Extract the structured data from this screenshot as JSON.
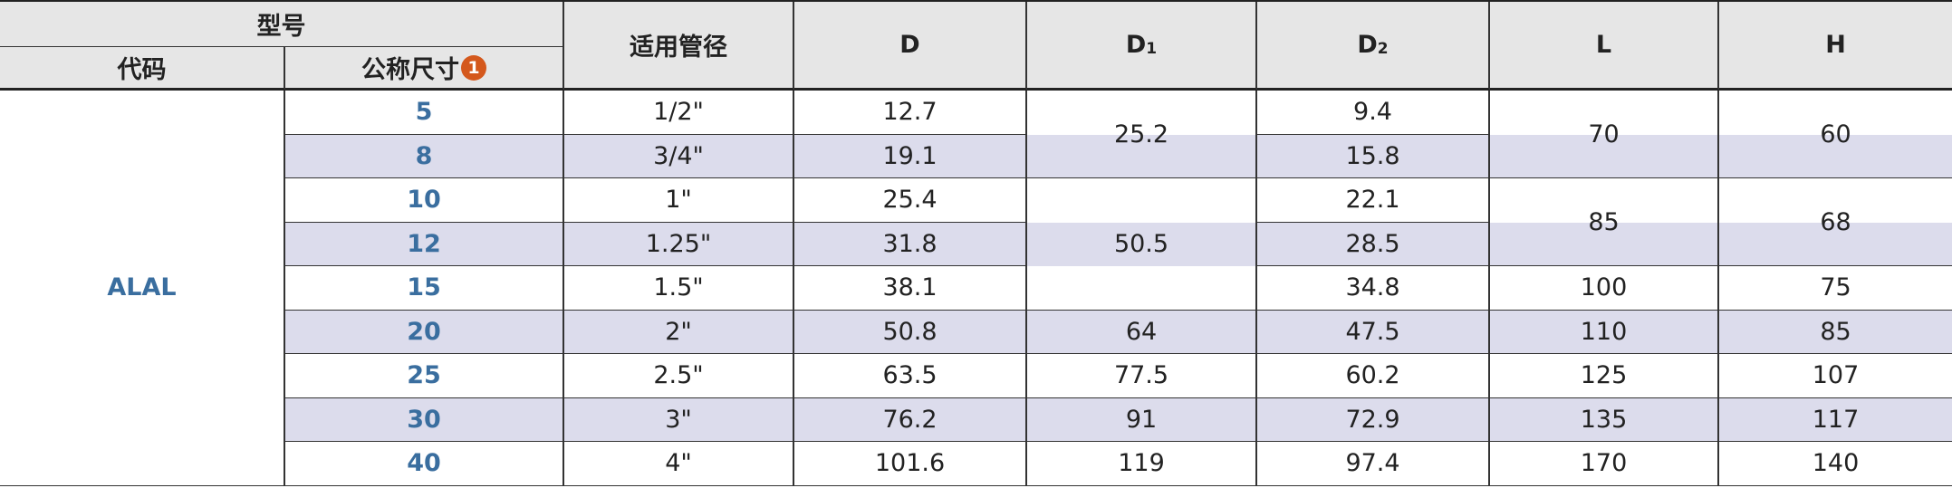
{
  "header": {
    "model": "型号",
    "code": "代码",
    "size": "公称尺寸",
    "badge": "1",
    "pipe": "适用管径",
    "D": "D",
    "D1": {
      "text": "D",
      "sub": "1"
    },
    "D2": {
      "text": "D",
      "sub": "2"
    },
    "L": "L",
    "H": "H"
  },
  "table": {
    "code": "ALAL",
    "size": [
      "5",
      "8",
      "10",
      "12",
      "15",
      "20",
      "25",
      "30",
      "40"
    ],
    "pipe": [
      "1/2\"",
      "3/4\"",
      "1\"",
      "1.25\"",
      "1.5\"",
      "2\"",
      "2.5\"",
      "3\"",
      "4\""
    ],
    "D": [
      "12.7",
      "19.1",
      "25.4",
      "31.8",
      "38.1",
      "50.8",
      "63.5",
      "76.2",
      "101.6"
    ],
    "D1": [
      "25.2",
      null,
      "50.5",
      null,
      null,
      "64",
      "77.5",
      "91",
      "119"
    ],
    "D2": [
      "9.4",
      "15.8",
      "22.1",
      "28.5",
      "34.8",
      "47.5",
      "60.2",
      "72.9",
      "97.4"
    ],
    "L": [
      "70",
      null,
      "85",
      null,
      "100",
      "110",
      "125",
      "135",
      "170"
    ],
    "H": [
      "60",
      null,
      "68",
      null,
      "75",
      "85",
      "107",
      "117",
      "140"
    ]
  }
}
